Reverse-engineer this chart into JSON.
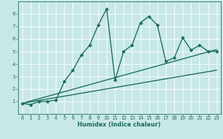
{
  "xlabel": "Humidex (Indice chaleur)",
  "bg_color": "#c8e8e8",
  "line_color": "#1a6b5a",
  "grid_color": "#ffffff",
  "xlim": [
    -0.5,
    23.5
  ],
  "ylim": [
    0,
    9
  ],
  "xticks": [
    0,
    1,
    2,
    3,
    4,
    5,
    6,
    7,
    8,
    9,
    10,
    11,
    12,
    13,
    14,
    15,
    16,
    17,
    18,
    19,
    20,
    21,
    22,
    23
  ],
  "yticks": [
    1,
    2,
    3,
    4,
    5,
    6,
    7,
    8
  ],
  "series1_x": [
    0,
    1,
    2,
    3,
    4,
    5,
    6,
    7,
    8,
    9,
    10,
    11,
    12,
    13,
    14,
    15,
    16,
    17,
    18,
    19,
    20,
    21,
    22,
    23
  ],
  "series1_y": [
    0.85,
    0.75,
    1.0,
    1.0,
    1.1,
    2.6,
    3.5,
    4.7,
    5.5,
    7.1,
    8.4,
    2.7,
    5.0,
    5.5,
    7.3,
    7.8,
    7.1,
    4.2,
    4.5,
    6.1,
    5.1,
    5.5,
    5.0,
    5.0
  ],
  "series2_x": [
    0,
    23
  ],
  "series2_y": [
    0.85,
    5.15
  ],
  "series3_x": [
    0,
    23
  ],
  "series3_y": [
    0.85,
    3.5
  ],
  "marker": "D",
  "markersize": 2.5,
  "linewidth": 1.0,
  "tick_fontsize": 5.0,
  "xlabel_fontsize": 6.0
}
